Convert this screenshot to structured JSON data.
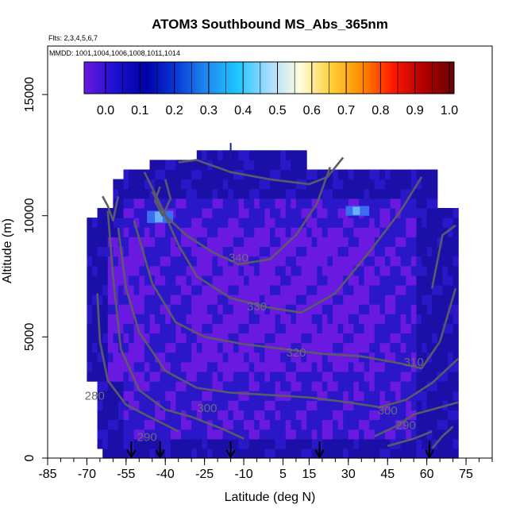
{
  "chart_data": {
    "type": "heatmap",
    "title": "ATOM3 Southbound MS_Abs_365nm",
    "flights_label": "Flts: 2,3,4,5,6,7",
    "dates_label": "MMDD: 1001,1004,1006,1008,1011,1014",
    "xlabel": "Latitude (deg N)",
    "ylabel": "Altitude (m)",
    "xlim": [
      -85,
      85
    ],
    "ylim": [
      0,
      17000
    ],
    "x_ticks": [
      -85,
      -70,
      -55,
      -40,
      -25,
      -10,
      5,
      15,
      30,
      45,
      60,
      75
    ],
    "x_tick_labels": [
      "-85",
      "-70",
      "-55",
      "-40",
      "-25",
      "-10",
      "5",
      "15",
      "30",
      "45",
      "60",
      "75"
    ],
    "x_minor_step": 5,
    "y_ticks": [
      0,
      5000,
      10000,
      15000
    ],
    "y_tick_labels": [
      "0",
      "5000",
      "10000",
      "15000"
    ],
    "colorbar": {
      "ticks": [
        0.0,
        0.1,
        0.2,
        0.3,
        0.4,
        0.5,
        0.6,
        0.7,
        0.8,
        0.9,
        1.0
      ],
      "tick_labels": [
        "0.0",
        "0.1",
        "0.2",
        "0.3",
        "0.4",
        "0.5",
        "0.6",
        "0.7",
        "0.8",
        "0.9",
        "1.0"
      ],
      "colors": [
        "#6a1ae0",
        "#1d0fcf",
        "#0000a8",
        "#0a3ad8",
        "#1e8cf0",
        "#1ec8ff",
        "#a8dcff",
        "#fffde0",
        "#ffd23a",
        "#ff8a00",
        "#ff1a00",
        "#b00000",
        "#6a0000"
      ]
    },
    "grid": false,
    "heatmap_approx": {
      "lat_range": [
        -70,
        72
      ],
      "alt_range": [
        0,
        12700
      ],
      "dominant_value": 0.03,
      "description_colors": {
        "low": "#6a1ae0",
        "mid": "#2a17c8",
        "high": "#1a10a8"
      },
      "bright_patches": [
        {
          "lat": [
            -47,
            -37
          ],
          "alt": [
            9700,
            10200
          ],
          "value": 0.2
        },
        {
          "lat": [
            29,
            38
          ],
          "alt": [
            10000,
            10400
          ],
          "value": 0.22
        }
      ]
    },
    "contours": [
      {
        "label": "280",
        "label_pos": [
          -67,
          2400
        ]
      },
      {
        "label": "290",
        "label_pos": [
          -47,
          700
        ]
      },
      {
        "label": "290",
        "label_pos": [
          52,
          1200
        ]
      },
      {
        "label": "300",
        "label_pos": [
          -24,
          1900
        ]
      },
      {
        "label": "300",
        "label_pos": [
          45,
          1800
        ]
      },
      {
        "label": "310",
        "label_pos": [
          55,
          3800
        ]
      },
      {
        "label": "320",
        "label_pos": [
          10,
          4200
        ]
      },
      {
        "label": "330",
        "label_pos": [
          -5,
          6100
        ]
      },
      {
        "label": "340",
        "label_pos": [
          -12,
          8100
        ]
      }
    ],
    "arrows_lat": [
      -53,
      -42,
      -15,
      19,
      61
    ]
  }
}
